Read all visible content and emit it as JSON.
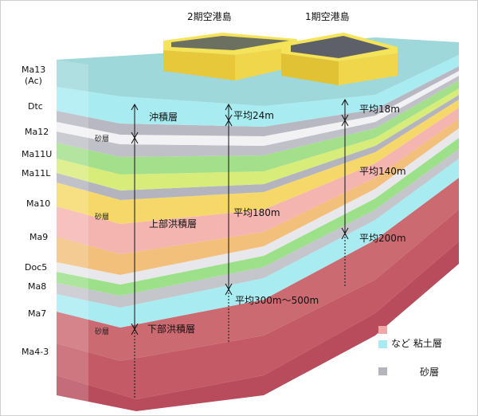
{
  "islands": {
    "second_phase": "2期空港島",
    "first_phase": "1期空港島"
  },
  "strata_labels": [
    "Ma13",
    "(Ac)",
    "Dtc",
    "Ma12",
    "Ma11U",
    "Ma11L",
    "Ma10",
    "Ma9",
    "Doc5",
    "Ma8",
    "Ma7",
    "Ma4-3"
  ],
  "sand_labels": [
    "砂層",
    "砂層",
    "砂層"
  ],
  "layer_names": {
    "alluvium": "沖積層",
    "upper_diluvium": "上部洪積層",
    "lower_diluvium": "下部洪積層"
  },
  "depths": {
    "avg_24": "平均24m",
    "avg_18": "平均18m",
    "avg_140": "平均140m",
    "avg_180": "平均180m",
    "avg_200": "平均200m",
    "avg_300_500": "平均300m～500m"
  },
  "legend": {
    "clay_label": "など 粘土層",
    "sand_label": "砂層"
  },
  "colors": {
    "clay_pink": "#f0a8a6",
    "clay_cyan": "#a8ecf2",
    "sand_gray": "#b4b4be",
    "island_yellow": "#f2e04a"
  }
}
